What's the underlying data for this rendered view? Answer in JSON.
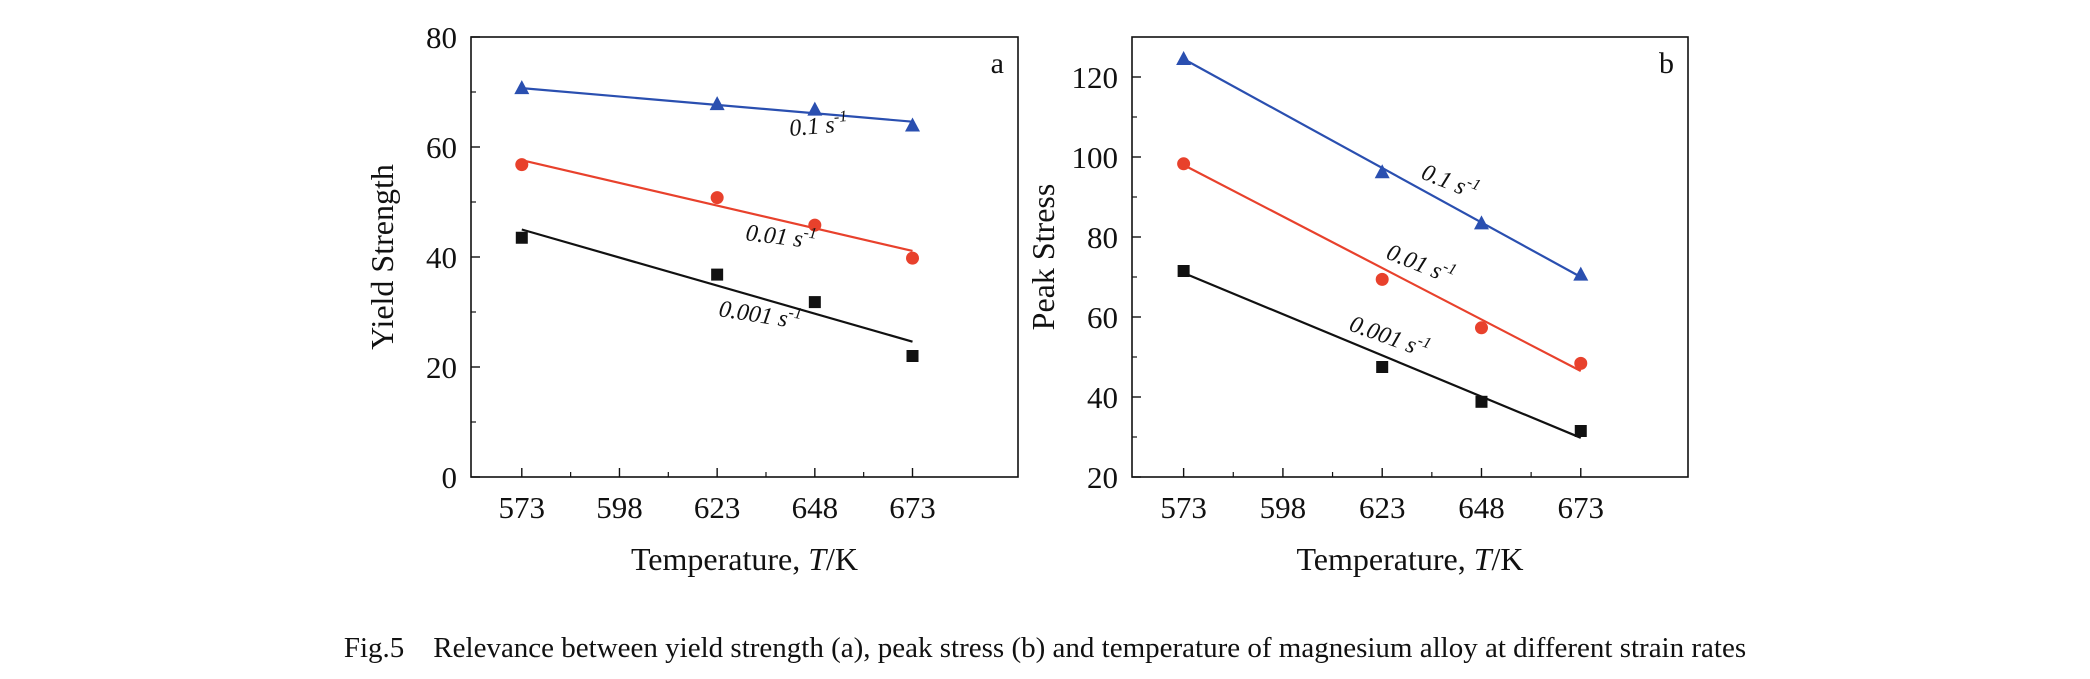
{
  "caption": "Fig.5    Relevance between yield strength (a), peak stress (b) and temperature of magnesium alloy at different strain rates",
  "colors": {
    "rate_0_1": "#2a4fb0",
    "rate_0_01": "#e8412c",
    "rate_0_001": "#111111"
  },
  "chart_data": [
    {
      "type": "scatter",
      "panel": "a",
      "xlabel": "Temperature, T/K",
      "xlabel_parts": [
        "Temperature, ",
        "T",
        "/K"
      ],
      "ylabel": "Yield Strength",
      "xlim": [
        560,
        700
      ],
      "ylim": [
        0,
        80
      ],
      "xticks": [
        573,
        598,
        623,
        648,
        673
      ],
      "yticks": [
        0,
        20,
        40,
        60,
        80
      ],
      "series": [
        {
          "name": "0.1 s-1",
          "label_base": "0.1 s",
          "label_exp": "-1",
          "color": "#2a4fb0",
          "marker": "triangle",
          "x": [
            573,
            623,
            648,
            673
          ],
          "y": [
            70.7,
            67.8,
            66.8,
            63.9
          ],
          "fit": [
            [
              573,
              70.7
            ],
            [
              673,
              64.6
            ]
          ]
        },
        {
          "name": "0.01 s-1",
          "label_base": "0.01 s",
          "label_exp": "-1",
          "color": "#e8412c",
          "marker": "circle",
          "x": [
            573,
            623,
            648,
            673
          ],
          "y": [
            56.8,
            50.8,
            45.8,
            39.8
          ],
          "fit": [
            [
              573,
              57.6
            ],
            [
              673,
              41.1
            ]
          ]
        },
        {
          "name": "0.001 s-1",
          "label_base": "0.001 s",
          "label_exp": "-1",
          "color": "#111111",
          "marker": "square",
          "x": [
            573,
            623,
            648,
            673
          ],
          "y": [
            43.5,
            36.8,
            31.8,
            22.0
          ],
          "fit": [
            [
              573,
              45.0
            ],
            [
              673,
              24.6
            ]
          ]
        }
      ]
    },
    {
      "type": "scatter",
      "panel": "b",
      "xlabel": "Temperature, T/K",
      "xlabel_parts": [
        "Temperature, ",
        "T",
        "/K"
      ],
      "ylabel": "Peak Stress",
      "xlim": [
        560,
        700
      ],
      "ylim": [
        20,
        130
      ],
      "xticks": [
        573,
        598,
        623,
        648,
        673
      ],
      "yticks": [
        20,
        40,
        60,
        80,
        100,
        120
      ],
      "series": [
        {
          "name": "0.1 s-1",
          "label_base": "0.1 s",
          "label_exp": "-1",
          "color": "#2a4fb0",
          "marker": "triangle",
          "x": [
            573,
            623,
            648,
            673
          ],
          "y": [
            124.5,
            96.2,
            83.4,
            70.6
          ],
          "fit": [
            [
              573,
              124.5
            ],
            [
              673,
              70.0
            ]
          ]
        },
        {
          "name": "0.01 s-1",
          "label_base": "0.01 s",
          "label_exp": "-1",
          "color": "#e8412c",
          "marker": "circle",
          "x": [
            573,
            623,
            648,
            673
          ],
          "y": [
            98.3,
            69.4,
            57.3,
            48.4
          ],
          "fit": [
            [
              573,
              98.0
            ],
            [
              673,
              46.5
            ]
          ]
        },
        {
          "name": "0.001 s-1",
          "label_base": "0.001 s",
          "label_exp": "-1",
          "color": "#111111",
          "marker": "square",
          "x": [
            573,
            623,
            648,
            673
          ],
          "y": [
            71.5,
            47.5,
            38.8,
            31.5
          ],
          "fit": [
            [
              573,
              71.0
            ],
            [
              673,
              29.8
            ]
          ]
        }
      ]
    }
  ]
}
